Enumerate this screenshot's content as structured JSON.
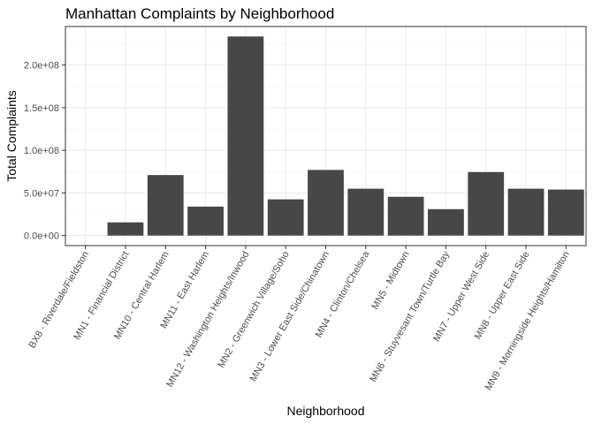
{
  "chart_data": {
    "type": "bar",
    "title": "Manhattan Complaints by Neighborhood",
    "xlabel": "Neighborhood",
    "ylabel": "Total Complaints",
    "categories": [
      "BX8 - Riverdale/Fieldston",
      "MN1 - Financial District",
      "MN10 - Central Harlem",
      "MN11 - East Harlem",
      "MN12 - Washington Heights/Inwood",
      "MN2 - Greenwich Village/Soho",
      "MN3 - Lower East Side/Chinatown",
      "MN4 - Clinton/Chelsea",
      "MN5 - Midtown",
      "MN6 - Stuyvesant Town/Turtle Bay",
      "MN7 - Upper West Side",
      "MN8 - Upper East Side",
      "MN9 - Morningside Heights/Hamilton"
    ],
    "values": [
      0,
      15500000,
      71000000,
      34000000,
      233500000,
      42500000,
      77000000,
      55000000,
      45500000,
      31000000,
      74500000,
      55000000,
      54000000
    ],
    "yticks": [
      0,
      50000000,
      100000000,
      150000000,
      200000000
    ],
    "ytick_labels": [
      "0.0e+00",
      "5.0e+07",
      "1.0e+08",
      "1.5e+08",
      "2.0e+08"
    ],
    "ylim": [
      -11700000,
      245200000
    ],
    "bar_color": "#474747",
    "panel_border_color": "#333333",
    "grid": true,
    "legend": "none"
  }
}
